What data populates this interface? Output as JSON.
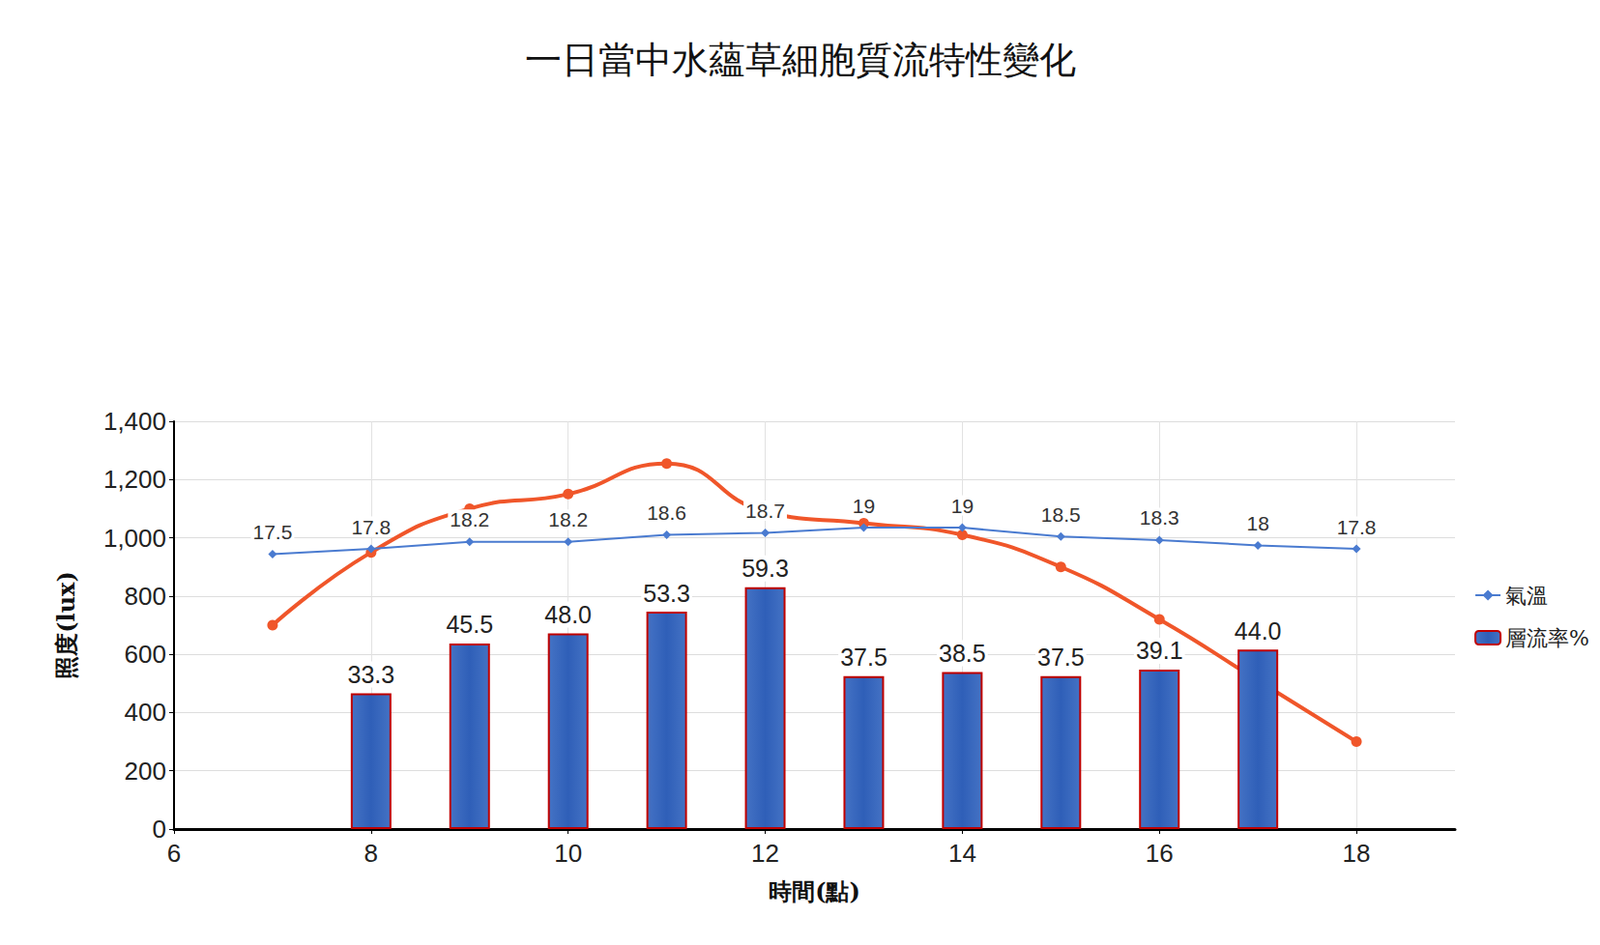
{
  "chart_data": {
    "type": "bar",
    "title": "一日當中水蘊草細胞質流特性變化",
    "x_label": "時間(點)",
    "y_label": "照度(lux)",
    "xlim": [
      6,
      19
    ],
    "xticks": [
      6,
      8,
      10,
      12,
      14,
      16,
      18
    ],
    "ylim": [
      0,
      1400
    ],
    "yticks": [
      0,
      200,
      400,
      600,
      800,
      1000,
      1200,
      1400
    ],
    "y2lim": [
      0,
      100
    ],
    "y3lim": [
      2,
      25
    ],
    "grid": true,
    "legend": "right",
    "series": [
      {
        "type": "line",
        "color": "#f0562a",
        "marker": "circle",
        "line_style": "smooth",
        "x": [
          7,
          8,
          9,
          10,
          11,
          12,
          13,
          14,
          15,
          16,
          17,
          18
        ],
        "values": [
          700,
          950,
          1100,
          1150,
          1255,
          1090,
          1050,
          1010,
          900,
          720,
          510,
          300
        ]
      },
      {
        "name": "氣溫",
        "type": "line",
        "color": "#4a7bd0",
        "marker": "diamond",
        "line_style": "solid",
        "axis": "y3",
        "data_labels": true,
        "x": [
          7,
          8,
          9,
          10,
          11,
          12,
          13,
          14,
          15,
          16,
          17,
          18
        ],
        "values": [
          17.5,
          17.8,
          18.2,
          18.2,
          18.6,
          18.7,
          19,
          19,
          18.5,
          18.3,
          18,
          17.8
        ]
      },
      {
        "name": "層流率%",
        "type": "bar",
        "color": "#4472c4",
        "axis": "y2",
        "data_labels": true,
        "x": [
          8,
          9,
          10,
          11,
          12,
          13,
          14,
          15,
          16,
          17
        ],
        "values": [
          33.3,
          45.5,
          48.0,
          53.3,
          59.3,
          37.5,
          38.5,
          37.5,
          39.1,
          44.0
        ],
        "value_labels": [
          "33.3",
          "45.5",
          "48.0",
          "53.3",
          "59.3",
          "37.5",
          "38.5",
          "37.5",
          "39.1",
          "44.0"
        ]
      }
    ]
  }
}
